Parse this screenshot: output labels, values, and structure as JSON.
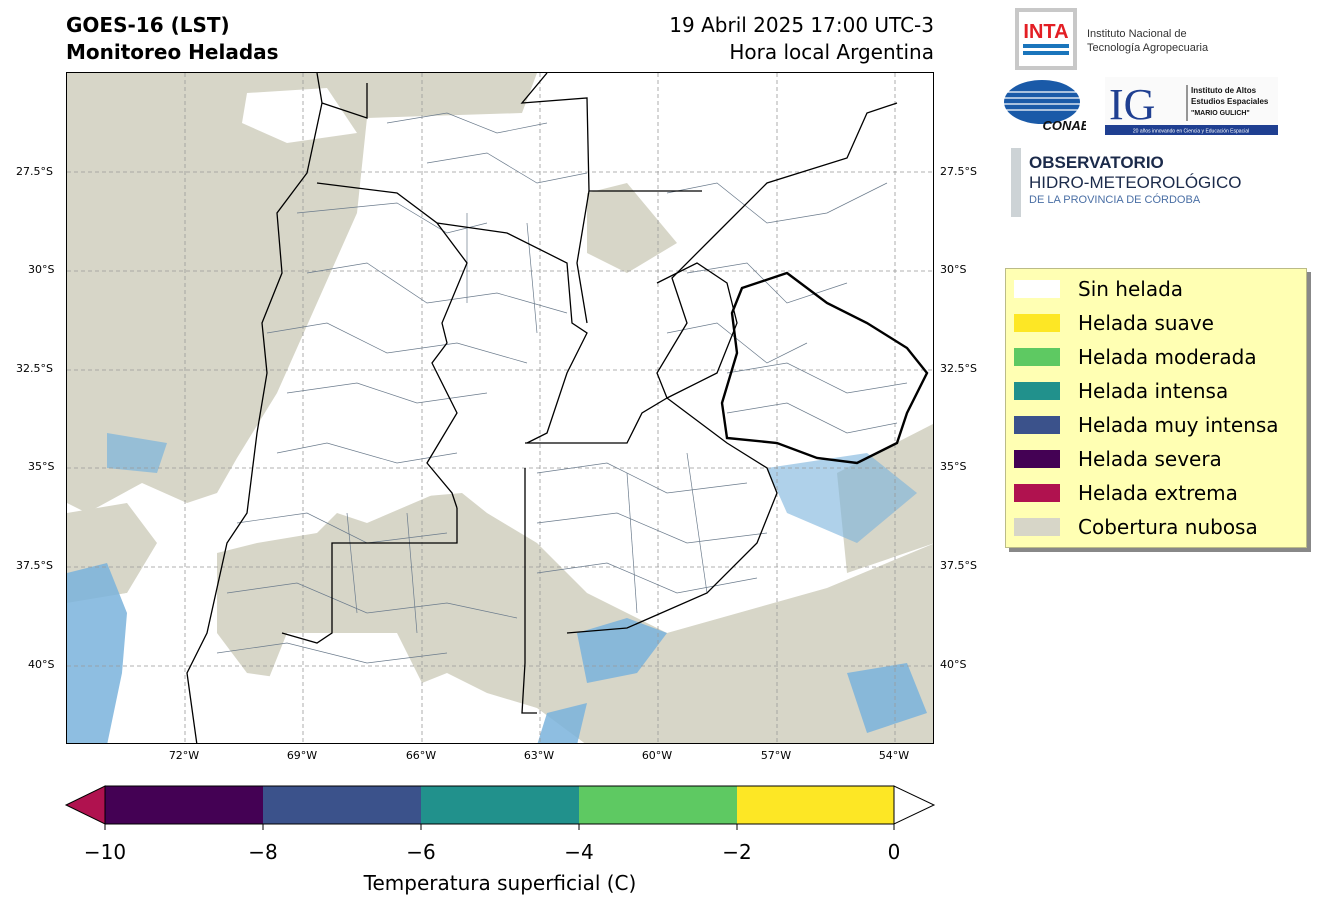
{
  "header": {
    "title_line1": "GOES-16 (LST)",
    "title_line2": "Monitoreo Heladas",
    "date_line": "19 Abril 2025 17:00 UTC-3",
    "local_line": "Hora local Argentina"
  },
  "map": {
    "lat_labels": [
      "27.5°S",
      "30°S",
      "32.5°S",
      "35°S",
      "37.5°S",
      "40°S"
    ],
    "lon_labels": [
      "72°W",
      "69°W",
      "66°W",
      "63°W",
      "60°W",
      "57°W",
      "54°W"
    ],
    "colors": {
      "cloud": "#d7d6c8",
      "no_frost": "#ffffff",
      "water_cold": "#7ab3dc",
      "border": "#000000",
      "district": "#6b7b8c"
    }
  },
  "logos": {
    "inta_mark": "INTA",
    "inta_name_1": "Instituto Nacional de",
    "inta_name_2": "Tecnología Agropecuaria",
    "conae": "CONAE",
    "ig_mark": "IG",
    "ig_name_1": "Instituto de Altos",
    "ig_name_2": "Estudios Espaciales",
    "ig_name_3": "\"MARIO GULICH\"",
    "ig_tagline": "20 años innovando en Ciencia y Educación Espacial",
    "obs_1": "OBSERVATORIO",
    "obs_2": "HIDRO-METEOROLÓGICO",
    "obs_3": "DE LA PROVINCIA DE CÓRDOBA"
  },
  "legend": {
    "items": [
      {
        "label": "Sin helada",
        "color": "#ffffff"
      },
      {
        "label": "Helada suave",
        "color": "#fde725"
      },
      {
        "label": "Helada moderada",
        "color": "#5ec962"
      },
      {
        "label": "Helada intensa",
        "color": "#21918c"
      },
      {
        "label": "Helada muy intensa",
        "color": "#3b528b"
      },
      {
        "label": "Helada severa",
        "color": "#440154"
      },
      {
        "label": "Helada extrema",
        "color": "#b0124f"
      },
      {
        "label": "Cobertura nubosa",
        "color": "#d7d6c8"
      }
    ]
  },
  "colorbar": {
    "ticks": [
      "−10",
      "−8",
      "−6",
      "−4",
      "−2",
      "0"
    ],
    "label": "Temperatura superficial (C)",
    "segments": [
      "#440154",
      "#3b528b",
      "#21918c",
      "#5ec962",
      "#fde725"
    ],
    "under_color": "#b0124f",
    "over_color": "#ffffff"
  }
}
